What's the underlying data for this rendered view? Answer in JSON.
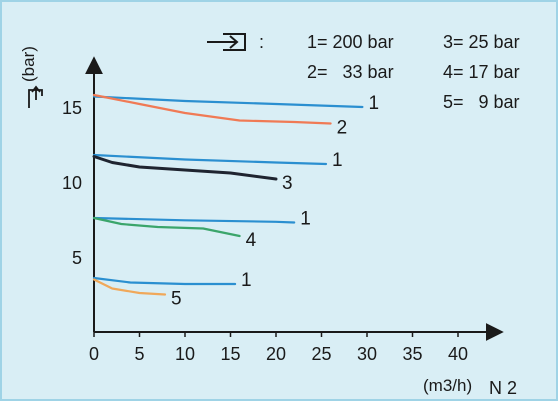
{
  "chart_data": {
    "type": "line",
    "title": "",
    "xlabel": "(m3/h)",
    "xlabel_subscript": "N 2",
    "ylabel": "(bar)",
    "xlim": [
      0,
      40
    ],
    "ylim": [
      0,
      19
    ],
    "x_ticks": [
      "0",
      "5",
      "10",
      "15",
      "20",
      "25",
      "30",
      "35",
      "40"
    ],
    "x_tick_values": [
      0,
      5,
      10,
      15,
      20,
      25,
      30,
      35,
      40
    ],
    "y_ticks": [
      "5",
      "10",
      "15"
    ],
    "y_tick_values": [
      5,
      10,
      15
    ],
    "grid": false,
    "legend_title": ":",
    "legend": [
      {
        "key": "1",
        "text": "1= 200 bar"
      },
      {
        "key": "2",
        "text": "2=   33 bar"
      },
      {
        "key": "3",
        "text": "3= 25 bar"
      },
      {
        "key": "4",
        "text": "4= 17 bar"
      },
      {
        "key": "5",
        "text": "5=   9 bar"
      }
    ],
    "series": [
      {
        "label": "1",
        "color": "#2b8fd0",
        "x": [
          0,
          10,
          20,
          29.5
        ],
        "y": [
          15.7,
          15.4,
          15.2,
          15.0
        ]
      },
      {
        "label": "2",
        "color": "#f07a55",
        "x": [
          0,
          5,
          10,
          16,
          22,
          26
        ],
        "y": [
          15.8,
          15.2,
          14.6,
          14.1,
          14.0,
          13.9
        ]
      },
      {
        "label": "1",
        "color": "#2b8fd0",
        "x": [
          0,
          10,
          20,
          25.5
        ],
        "y": [
          11.8,
          11.5,
          11.3,
          11.2
        ]
      },
      {
        "label": "3",
        "color": "#1f2430",
        "x": [
          0,
          2,
          5,
          10,
          15,
          20
        ],
        "y": [
          11.7,
          11.3,
          11.0,
          10.8,
          10.6,
          10.2
        ]
      },
      {
        "label": "1",
        "color": "#2b8fd0",
        "x": [
          0,
          10,
          20,
          22
        ],
        "y": [
          7.6,
          7.45,
          7.35,
          7.3
        ]
      },
      {
        "label": "4",
        "color": "#3ba56b",
        "x": [
          0,
          3,
          7,
          12,
          16
        ],
        "y": [
          7.6,
          7.2,
          7.0,
          6.9,
          6.4
        ]
      },
      {
        "label": "1",
        "color": "#2b8fd0",
        "x": [
          0,
          4,
          10,
          15.5
        ],
        "y": [
          3.6,
          3.3,
          3.2,
          3.2
        ]
      },
      {
        "label": "5",
        "color": "#f0a85a",
        "x": [
          0,
          2,
          5,
          7.8
        ],
        "y": [
          3.5,
          2.9,
          2.6,
          2.5
        ]
      }
    ]
  }
}
